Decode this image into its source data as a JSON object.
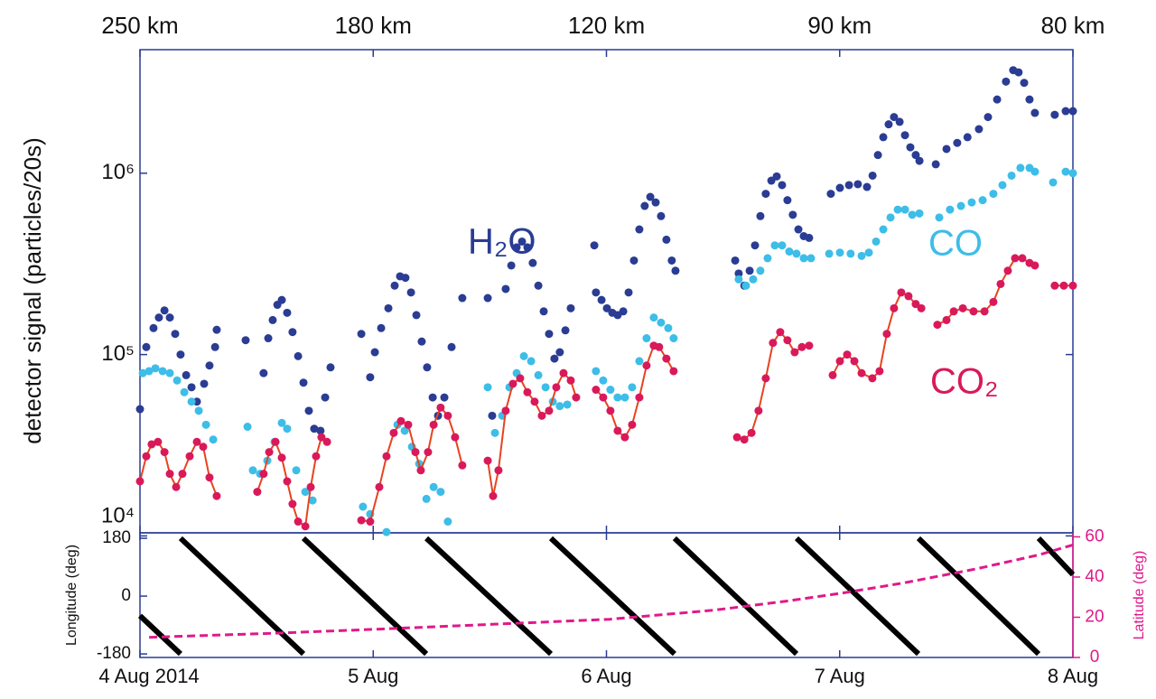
{
  "chart_data": [
    {
      "type": "scatter",
      "ylabel": "detector signal (particles/20s)",
      "yscale": "log",
      "xlim": [
        0,
        4
      ],
      "ylim": [
        10400,
        4800000
      ],
      "yticks": [
        {
          "value": 10000,
          "label": "10⁴"
        },
        {
          "value": 100000,
          "label": "10⁵"
        },
        {
          "value": 1000000,
          "label": "10⁶"
        }
      ],
      "x2ticks": [
        {
          "value": 0,
          "label": "250 km"
        },
        {
          "value": 1,
          "label": "180 km"
        },
        {
          "value": 2,
          "label": "120 km"
        },
        {
          "value": 3,
          "label": "90 km"
        },
        {
          "value": 4,
          "label": "80 km"
        }
      ],
      "series": [
        {
          "name": "H₂O",
          "color": "#2a3c93",
          "x": [
            0,
            0.027,
            0.058,
            0.081,
            0.105,
            0.128,
            0.151,
            0.174,
            0.198,
            0.221,
            0.244,
            0.275,
            0.298,
            0.322,
            0.329,
            0.453,
            0.53,
            0.55,
            0.569,
            0.589,
            0.608,
            0.631,
            0.654,
            0.678,
            0.701,
            0.724,
            0.747,
            0.774,
            0.794,
            0.817,
            0.949,
            0.987,
            1.007,
            1.034,
            1.065,
            1.092,
            1.115,
            1.138,
            1.162,
            1.185,
            1.208,
            1.231,
            1.255,
            1.278,
            1.305,
            1.336,
            1.382,
            1.491,
            1.51,
            1.568,
            1.592,
            1.615,
            1.638,
            1.661,
            1.684,
            1.708,
            1.731,
            1.754,
            1.777,
            1.8,
            1.824,
            1.847,
            1.948,
            1.955,
            1.979,
            2.002,
            2.025,
            2.048,
            2.072,
            2.095,
            2.118,
            2.141,
            2.164,
            2.188,
            2.211,
            2.234,
            2.257,
            2.28,
            2.296,
            2.552,
            2.567,
            2.591,
            2.614,
            2.637,
            2.66,
            2.683,
            2.707,
            2.73,
            2.753,
            2.776,
            2.799,
            2.823,
            2.846,
            2.869,
            2.962,
            3.001,
            3.04,
            3.078,
            3.117,
            3.141,
            3.164,
            3.187,
            3.21,
            3.233,
            3.257,
            3.28,
            3.303,
            3.326,
            3.342,
            3.412,
            3.458,
            3.504,
            3.548,
            3.597,
            3.636,
            3.675,
            3.713,
            3.744,
            3.767,
            3.791,
            3.814,
            3.837,
            3.922,
            3.969,
            4.0
          ],
          "values": [
            50000,
            110000,
            140000,
            160000,
            175000,
            160000,
            130000,
            100000,
            77000,
            66000,
            55000,
            69000,
            87000,
            110000,
            137000,
            120000,
            79000,
            123000,
            155000,
            188000,
            200000,
            170000,
            133000,
            98000,
            70000,
            49000,
            39000,
            38000,
            58000,
            85000,
            130000,
            75000,
            103000,
            140000,
            180000,
            240000,
            270000,
            265000,
            220000,
            165000,
            118000,
            85000,
            58000,
            46000,
            58000,
            110000,
            205000,
            205000,
            46000,
            230000,
            310000,
            390000,
            420000,
            390000,
            320000,
            240000,
            173000,
            130000,
            95000,
            103000,
            136000,
            180000,
            400000,
            220000,
            200000,
            180000,
            170000,
            165000,
            173000,
            220000,
            330000,
            490000,
            660000,
            740000,
            690000,
            580000,
            430000,
            330000,
            290000,
            330000,
            280000,
            240000,
            290000,
            400000,
            580000,
            770000,
            910000,
            960000,
            860000,
            710000,
            590000,
            490000,
            450000,
            440000,
            770000,
            830000,
            860000,
            870000,
            840000,
            970000,
            1260000,
            1580000,
            1860000,
            2040000,
            1920000,
            1620000,
            1390000,
            1260000,
            1170000,
            1120000,
            1360000,
            1470000,
            1580000,
            1750000,
            2040000,
            2550000,
            3200000,
            3700000,
            3600000,
            3150000,
            2550000,
            2150000,
            2100000,
            2200000,
            2200000
          ]
        },
        {
          "name": "CO",
          "color": "#3dbde8",
          "x": [
            0.012,
            0.039,
            0.066,
            0.097,
            0.128,
            0.159,
            0.19,
            0.221,
            0.252,
            0.283,
            0.314,
            0.461,
            0.484,
            0.515,
            0.546,
            0.577,
            0.608,
            0.631,
            0.67,
            0.709,
            0.74,
            0.956,
            0.987,
            1.057,
            1.104,
            1.135,
            1.166,
            1.197,
            1.228,
            1.259,
            1.289,
            1.32,
            1.491,
            1.522,
            1.553,
            1.584,
            1.615,
            1.646,
            1.677,
            1.708,
            1.739,
            1.77,
            1.8,
            1.832,
            1.955,
            1.986,
            2.017,
            2.048,
            2.079,
            2.11,
            2.141,
            2.172,
            2.203,
            2.234,
            2.265,
            2.288,
            2.567,
            2.598,
            2.629,
            2.66,
            2.691,
            2.722,
            2.753,
            2.784,
            2.815,
            2.846,
            2.877,
            2.955,
            3.001,
            3.047,
            3.094,
            3.125,
            3.156,
            3.187,
            3.218,
            3.249,
            3.28,
            3.311,
            3.342,
            3.427,
            3.473,
            3.52,
            3.566,
            3.613,
            3.659,
            3.698,
            3.737,
            3.775,
            3.814,
            3.837,
            3.915,
            3.969,
            4.0
          ],
          "values": [
            79000,
            81000,
            84000,
            81000,
            79000,
            72000,
            62000,
            55000,
            49000,
            41000,
            34000,
            40000,
            23000,
            22000,
            26000,
            33000,
            42000,
            39000,
            23000,
            17500,
            15700,
            14500,
            13200,
            10500,
            41000,
            38000,
            31000,
            25000,
            16000,
            18600,
            17500,
            12000,
            66000,
            37000,
            46000,
            66000,
            79000,
            98000,
            92000,
            77000,
            66000,
            55000,
            52000,
            53000,
            81000,
            72000,
            64000,
            58000,
            58000,
            66000,
            92000,
            123000,
            160000,
            150000,
            140000,
            123000,
            260000,
            240000,
            260000,
            290000,
            340000,
            400000,
            400000,
            370000,
            360000,
            340000,
            340000,
            360000,
            365000,
            360000,
            350000,
            365000,
            420000,
            490000,
            570000,
            630000,
            630000,
            590000,
            600000,
            570000,
            630000,
            660000,
            690000,
            710000,
            770000,
            860000,
            970000,
            1070000,
            1070000,
            1020000,
            890000,
            1020000,
            1000000
          ]
        },
        {
          "name": "CO₂",
          "color": "#d9195a",
          "line_color": "#e8431e",
          "x": [
            0,
            0.027,
            0.05,
            0.077,
            0.105,
            0.128,
            0.155,
            0.182,
            0.213,
            0.244,
            0.271,
            0.298,
            0.329,
            null,
            0.503,
            0.53,
            0.554,
            0.581,
            0.608,
            0.631,
            0.654,
            0.678,
            0.709,
            0.732,
            0.755,
            0.778,
            0.802,
            null,
            0.949,
            0.987,
            1.026,
            1.057,
            1.088,
            1.119,
            1.15,
            1.181,
            1.204,
            1.235,
            1.259,
            1.289,
            1.32,
            1.351,
            1.382,
            null,
            1.491,
            1.514,
            1.537,
            1.568,
            1.599,
            1.63,
            1.661,
            1.692,
            1.723,
            1.754,
            1.785,
            1.816,
            1.847,
            1.87,
            null,
            1.955,
            1.986,
            2.017,
            2.048,
            2.079,
            2.11,
            2.141,
            2.172,
            2.203,
            2.226,
            2.257,
            2.288,
            null,
            2.56,
            2.591,
            2.622,
            2.652,
            2.683,
            2.714,
            2.745,
            2.776,
            2.807,
            2.838,
            2.869,
            null,
            2.97,
            3.001,
            3.032,
            3.063,
            3.094,
            3.14,
            3.171,
            3.202,
            3.233,
            3.264,
            3.295,
            3.326,
            3.35,
            null,
            3.419,
            3.458,
            3.489,
            3.528,
            3.574,
            3.621,
            3.659,
            3.69,
            3.721,
            3.752,
            3.783,
            3.814,
            3.837,
            null,
            3.922,
            3.961,
            4.0
          ],
          "values": [
            20000,
            27500,
            32000,
            33000,
            29000,
            22000,
            18600,
            22000,
            27500,
            33000,
            31000,
            21000,
            16600,
            null,
            17500,
            22000,
            29000,
            33000,
            27000,
            20000,
            15000,
            12000,
            11300,
            18600,
            27500,
            35000,
            33000,
            null,
            12200,
            12000,
            18600,
            27500,
            37000,
            43000,
            41000,
            29000,
            23000,
            29000,
            41000,
            51000,
            46000,
            35000,
            24500,
            null,
            26000,
            16600,
            23000,
            49000,
            69000,
            74000,
            62000,
            55000,
            46000,
            49000,
            66000,
            79000,
            72000,
            58000,
            null,
            64000,
            58000,
            49000,
            38000,
            35000,
            41000,
            58000,
            87000,
            112000,
            110000,
            95000,
            81000,
            null,
            35000,
            34000,
            37000,
            49000,
            74000,
            116000,
            133000,
            120000,
            103000,
            110000,
            112000,
            null,
            77000,
            92000,
            100000,
            92000,
            79000,
            74000,
            81000,
            130000,
            180000,
            220000,
            210000,
            190000,
            180000,
            null,
            146000,
            155000,
            173000,
            180000,
            173000,
            173000,
            195000,
            245000,
            290000,
            340000,
            340000,
            320000,
            310000,
            null,
            240000,
            240000,
            240000
          ]
        }
      ]
    },
    {
      "type": "line",
      "ylabel": "Longitude (deg)",
      "y2label": "Latitude (deg)",
      "xlim": [
        0,
        4
      ],
      "xticks": [
        {
          "value": 0,
          "label": "4 Aug 2014"
        },
        {
          "value": 1,
          "label": "5 Aug"
        },
        {
          "value": 2,
          "label": "6 Aug"
        },
        {
          "value": 3,
          "label": "7 Aug"
        },
        {
          "value": 4,
          "label": "8 Aug"
        }
      ],
      "ylim": [
        -191,
        197
      ],
      "yticks": [
        -180,
        0,
        180
      ],
      "y2lim": [
        0,
        62
      ],
      "y2ticks": [
        0,
        20,
        40,
        60
      ],
      "y2color": "#e0198a",
      "series": [
        {
          "color": "#000000",
          "x": [
            0,
            0.174,
            0.174,
            0.174,
            0.701,
            0.701,
            0.701,
            1.228,
            1.228,
            1.228,
            1.762,
            1.762,
            1.762,
            2.292,
            2.292,
            2.292,
            2.815,
            2.815,
            2.815,
            3.338,
            3.338,
            3.338,
            3.853,
            3.853,
            3.853,
            4.0
          ],
          "values": [
            -61,
            -180,
            null,
            180,
            -180,
            null,
            180,
            -180,
            null,
            180,
            -180,
            null,
            180,
            -180,
            null,
            180,
            -180,
            null,
            180,
            -180,
            null,
            180,
            -180,
            null,
            180,
            67
          ]
        },
        {
          "color": "#e0198a",
          "axis": "y2",
          "dashed": true,
          "x": [
            0.039,
            0.563,
            1.007,
            1.51,
            2.013,
            2.459,
            2.769,
            3.009,
            3.272,
            3.582,
            3.853,
            4.0
          ],
          "values": [
            10,
            12,
            14,
            16.5,
            19,
            23.5,
            28,
            32,
            37,
            44,
            51,
            56
          ]
        }
      ]
    }
  ]
}
